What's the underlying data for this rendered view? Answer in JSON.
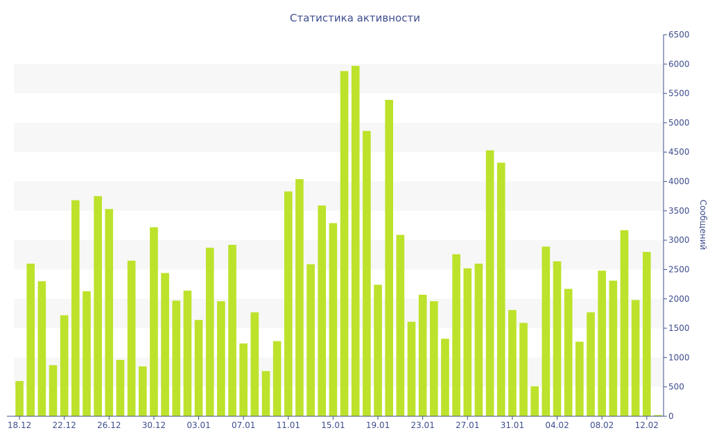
{
  "chart_data": {
    "type": "bar",
    "title": "Статистика активности",
    "ylabel": "Сообщений",
    "xlabel": "",
    "ylim": [
      0,
      6500
    ],
    "y_ticks": [
      0,
      500,
      1000,
      1500,
      2000,
      2500,
      3000,
      3500,
      4000,
      4500,
      5000,
      5500,
      6000,
      6500
    ],
    "grid": "alternating horizontal bands",
    "bar_color": "#bce22b",
    "text_color": "#3e4d8e",
    "categories": [
      "18.12",
      "19.12",
      "20.12",
      "21.12",
      "22.12",
      "23.12",
      "24.12",
      "25.12",
      "26.12",
      "27.12",
      "28.12",
      "29.12",
      "30.12",
      "31.12",
      "01.01",
      "02.01",
      "03.01",
      "04.01",
      "05.01",
      "06.01",
      "07.01",
      "08.01",
      "09.01",
      "10.01",
      "11.01",
      "12.01",
      "13.01",
      "14.01",
      "15.01",
      "16.01",
      "17.01",
      "18.01",
      "19.01",
      "20.01",
      "21.01",
      "22.01",
      "23.01",
      "24.01",
      "25.01",
      "26.01",
      "27.01",
      "28.01",
      "29.01",
      "30.01",
      "31.01",
      "01.02",
      "02.02",
      "03.02",
      "04.02",
      "05.02",
      "06.02",
      "07.02",
      "08.02",
      "09.02",
      "10.02",
      "11.02",
      "12.02",
      "13.02"
    ],
    "x_tick_labels": [
      "18.12",
      "22.12",
      "26.12",
      "30.12",
      "03.01",
      "07.01",
      "11.01",
      "15.01",
      "19.01",
      "23.01",
      "27.01",
      "31.01",
      "04.02",
      "08.02",
      "12.02"
    ],
    "values": [
      600,
      2600,
      2300,
      870,
      1720,
      3680,
      2130,
      3750,
      3530,
      960,
      2650,
      850,
      3220,
      2440,
      1970,
      2140,
      1640,
      2870,
      1960,
      2920,
      1240,
      1770,
      770,
      1280,
      3830,
      4040,
      2590,
      3590,
      3290,
      5880,
      5970,
      4860,
      2240,
      5390,
      3090,
      1610,
      2070,
      1960,
      1320,
      2760,
      2520,
      2600,
      4530,
      4320,
      1810,
      1590,
      510,
      2890,
      2640,
      2170,
      1270,
      1770,
      2480,
      2310,
      3170,
      1980,
      2800,
      20
    ]
  }
}
